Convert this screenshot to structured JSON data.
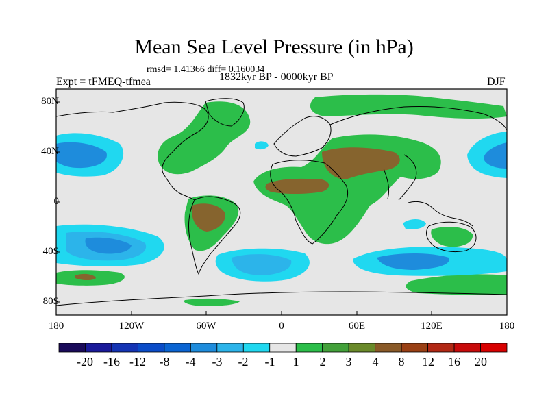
{
  "title": "Mean Sea Level Pressure (in hPa)",
  "stats_line": "rmsd= 1.41366 diff= 0.160034",
  "left_label": "Expt = tFMEQ-tfmea",
  "center_label": "1832kyr BP - 0000kyr BP",
  "right_label": "DJF",
  "lat_ticks": [
    "80N",
    "40N",
    "0",
    "40S",
    "80S"
  ],
  "lon_ticks": [
    "180",
    "120W",
    "60W",
    "0",
    "60E",
    "120E",
    "180"
  ],
  "colorbar": {
    "labels": [
      "-20",
      "-16",
      "-12",
      "-8",
      "-4",
      "-3",
      "-2",
      "-1",
      "1",
      "2",
      "3",
      "4",
      "8",
      "12",
      "16",
      "20"
    ],
    "colors": [
      "#1a0a5a",
      "#1a1a9a",
      "#1434b4",
      "#0a4cc8",
      "#0a64d2",
      "#1e8cdc",
      "#2cb4ea",
      "#20d8f0",
      "#e6e6e6",
      "#2cbe4a",
      "#43a13a",
      "#6a8a2a",
      "#8a5a28",
      "#9a4014",
      "#b22814",
      "#c80a0a",
      "#d80000"
    ]
  },
  "map_colors": {
    "neutral": "#e6e6e6",
    "green": "#2cbe4a",
    "dark_green": "#4e8c2e",
    "brown": "#86642e",
    "light_blue": "#20d8f0",
    "mid_blue": "#2cb4ea",
    "blue": "#1e8cdc",
    "deep_blue": "#0a64d2",
    "coast": "#000000"
  }
}
